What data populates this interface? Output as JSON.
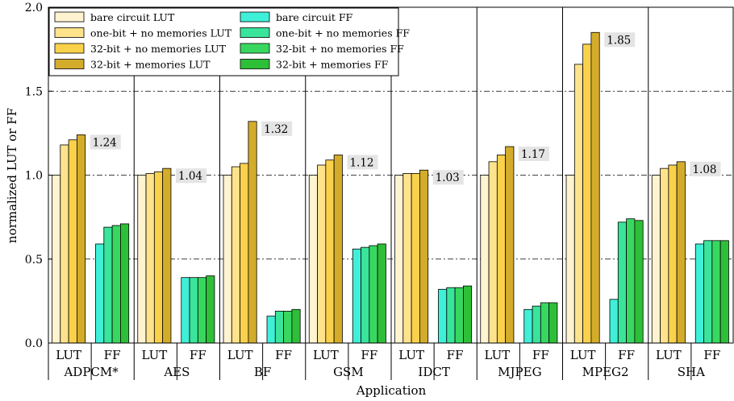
{
  "chart_data": {
    "type": "bar",
    "title": "",
    "xlabel": "Application",
    "ylabel": "normalized LUT or FF",
    "ylim": [
      0.0,
      2.0
    ],
    "yticks": [
      "0.0",
      "0.5",
      "1.0",
      "1.5",
      "2.0"
    ],
    "grid": "horizontal dash-dot",
    "legend_position": "top-left",
    "metric_labels": [
      "LUT",
      "FF"
    ],
    "categories": [
      "ADPCM*",
      "AES",
      "BF",
      "GSM",
      "IDCT",
      "MJPEG",
      "MPEG2",
      "SHA"
    ],
    "series": [
      {
        "name": "bare circuit LUT",
        "metric": "LUT",
        "color": "#fff3d0",
        "values": [
          1.0,
          1.0,
          1.0,
          1.0,
          1.0,
          1.0,
          1.0,
          1.0
        ]
      },
      {
        "name": "one-bit + no memories LUT",
        "metric": "LUT",
        "color": "#ffe38c",
        "values": [
          1.18,
          1.01,
          1.05,
          1.06,
          1.01,
          1.08,
          1.66,
          1.04
        ]
      },
      {
        "name": "32-bit + no memories LUT",
        "metric": "LUT",
        "color": "#fad14a",
        "values": [
          1.21,
          1.02,
          1.07,
          1.09,
          1.01,
          1.12,
          1.78,
          1.06
        ]
      },
      {
        "name": "32-bit + memories LUT",
        "metric": "LUT",
        "color": "#d4ac2b",
        "values": [
          1.24,
          1.04,
          1.32,
          1.12,
          1.03,
          1.17,
          1.85,
          1.08
        ]
      },
      {
        "name": "bare circuit FF",
        "metric": "FF",
        "color": "#3ff0d8",
        "values": [
          0.59,
          0.39,
          0.16,
          0.56,
          0.32,
          0.2,
          0.26,
          0.59
        ]
      },
      {
        "name": "one-bit + no memories FF",
        "metric": "FF",
        "color": "#3ae49a",
        "values": [
          0.69,
          0.39,
          0.19,
          0.57,
          0.33,
          0.22,
          0.72,
          0.61
        ]
      },
      {
        "name": "32-bit + no memories FF",
        "metric": "FF",
        "color": "#38d860",
        "values": [
          0.7,
          0.39,
          0.19,
          0.58,
          0.33,
          0.24,
          0.74,
          0.61
        ]
      },
      {
        "name": "32-bit + memories FF",
        "metric": "FF",
        "color": "#2ebf38",
        "values": [
          0.71,
          0.4,
          0.2,
          0.59,
          0.34,
          0.24,
          0.73,
          0.61
        ]
      }
    ],
    "data_labels": [
      "1.24",
      "1.04",
      "1.32",
      "1.12",
      "1.03",
      "1.17",
      "1.85",
      "1.08"
    ],
    "data_label_values": [
      1.24,
      1.04,
      1.32,
      1.12,
      1.03,
      1.17,
      1.85,
      1.08
    ]
  }
}
